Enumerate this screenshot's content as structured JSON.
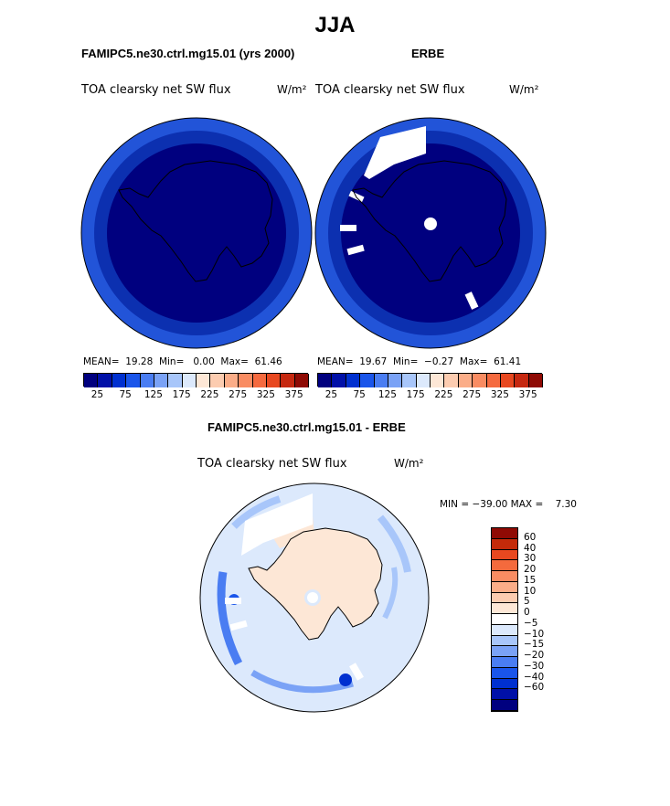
{
  "title": "JJA",
  "panels": {
    "model": {
      "header": "FAMIPC5.ne30.ctrl.mg15.01 (yrs 2000)",
      "subtitle": "TOA clearsky net SW flux",
      "units": "W/m²",
      "stats": "MEAN=  19.28  Min=   0.00  Max=  61.46"
    },
    "obs": {
      "header": "ERBE",
      "subtitle": "TOA clearsky net SW flux",
      "units": "W/m²",
      "stats": "MEAN=  19.67  Min=  −0.27  Max=  61.41"
    },
    "diff": {
      "header": "FAMIPC5.ne30.ctrl.mg15.01 - ERBE",
      "subtitle": "TOA clearsky net SW flux",
      "units": "W/m²",
      "stats": "MIN = −39.00 MAX =    7.30"
    }
  },
  "colorbar_abs": {
    "tick_labels": [
      "25",
      "75",
      "125",
      "175",
      "225",
      "275",
      "325",
      "375"
    ],
    "colors": [
      "#00007f",
      "#0010a8",
      "#0030d0",
      "#1a55ea",
      "#4a7df2",
      "#7aa2f6",
      "#a8c6fa",
      "#dce9fc",
      "#fde7d6",
      "#fcccb0",
      "#fbad88",
      "#f98c62",
      "#f56a3f",
      "#e84820",
      "#c62810",
      "#8f0a04"
    ]
  },
  "colorbar_diff": {
    "tick_labels": [
      "60",
      "40",
      "30",
      "20",
      "15",
      "10",
      "5",
      "0",
      "−5",
      "−10",
      "−15",
      "−20",
      "−30",
      "−40",
      "−60"
    ],
    "colors": [
      "#8f0a04",
      "#c42a0a",
      "#e84820",
      "#f46a3d",
      "#f98c62",
      "#fbad88",
      "#fcccb0",
      "#fde7d6",
      "#ffffff",
      "#dce9fc",
      "#a8c6fa",
      "#7aa2f6",
      "#4a7df2",
      "#1a55ea",
      "#0030d0",
      "#0010a8",
      "#00007f"
    ]
  },
  "chart_data": [
    {
      "type": "heatmap",
      "title": "FAMIPC5.ne30.ctrl.mg15.01 (yrs 2000)",
      "subtitle": "TOA clearsky net SW flux",
      "units": "W/m²",
      "season": "JJA",
      "projection": "south polar stereographic",
      "mean": 19.28,
      "min": 0.0,
      "max": 61.46,
      "levels": [
        25,
        75,
        125,
        175,
        225,
        275,
        325,
        375
      ]
    },
    {
      "type": "heatmap",
      "title": "ERBE",
      "subtitle": "TOA clearsky net SW flux",
      "units": "W/m²",
      "season": "JJA",
      "projection": "south polar stereographic",
      "mean": 19.67,
      "min": -0.27,
      "max": 61.41,
      "levels": [
        25,
        75,
        125,
        175,
        225,
        275,
        325,
        375
      ]
    },
    {
      "type": "heatmap",
      "title": "FAMIPC5.ne30.ctrl.mg15.01 - ERBE",
      "subtitle": "TOA clearsky net SW flux",
      "units": "W/m²",
      "season": "JJA",
      "projection": "south polar stereographic",
      "min": -39.0,
      "max": 7.3,
      "levels": [
        60,
        40,
        30,
        20,
        15,
        10,
        5,
        0,
        -5,
        -10,
        -15,
        -20,
        -30,
        -40,
        -60
      ]
    }
  ]
}
